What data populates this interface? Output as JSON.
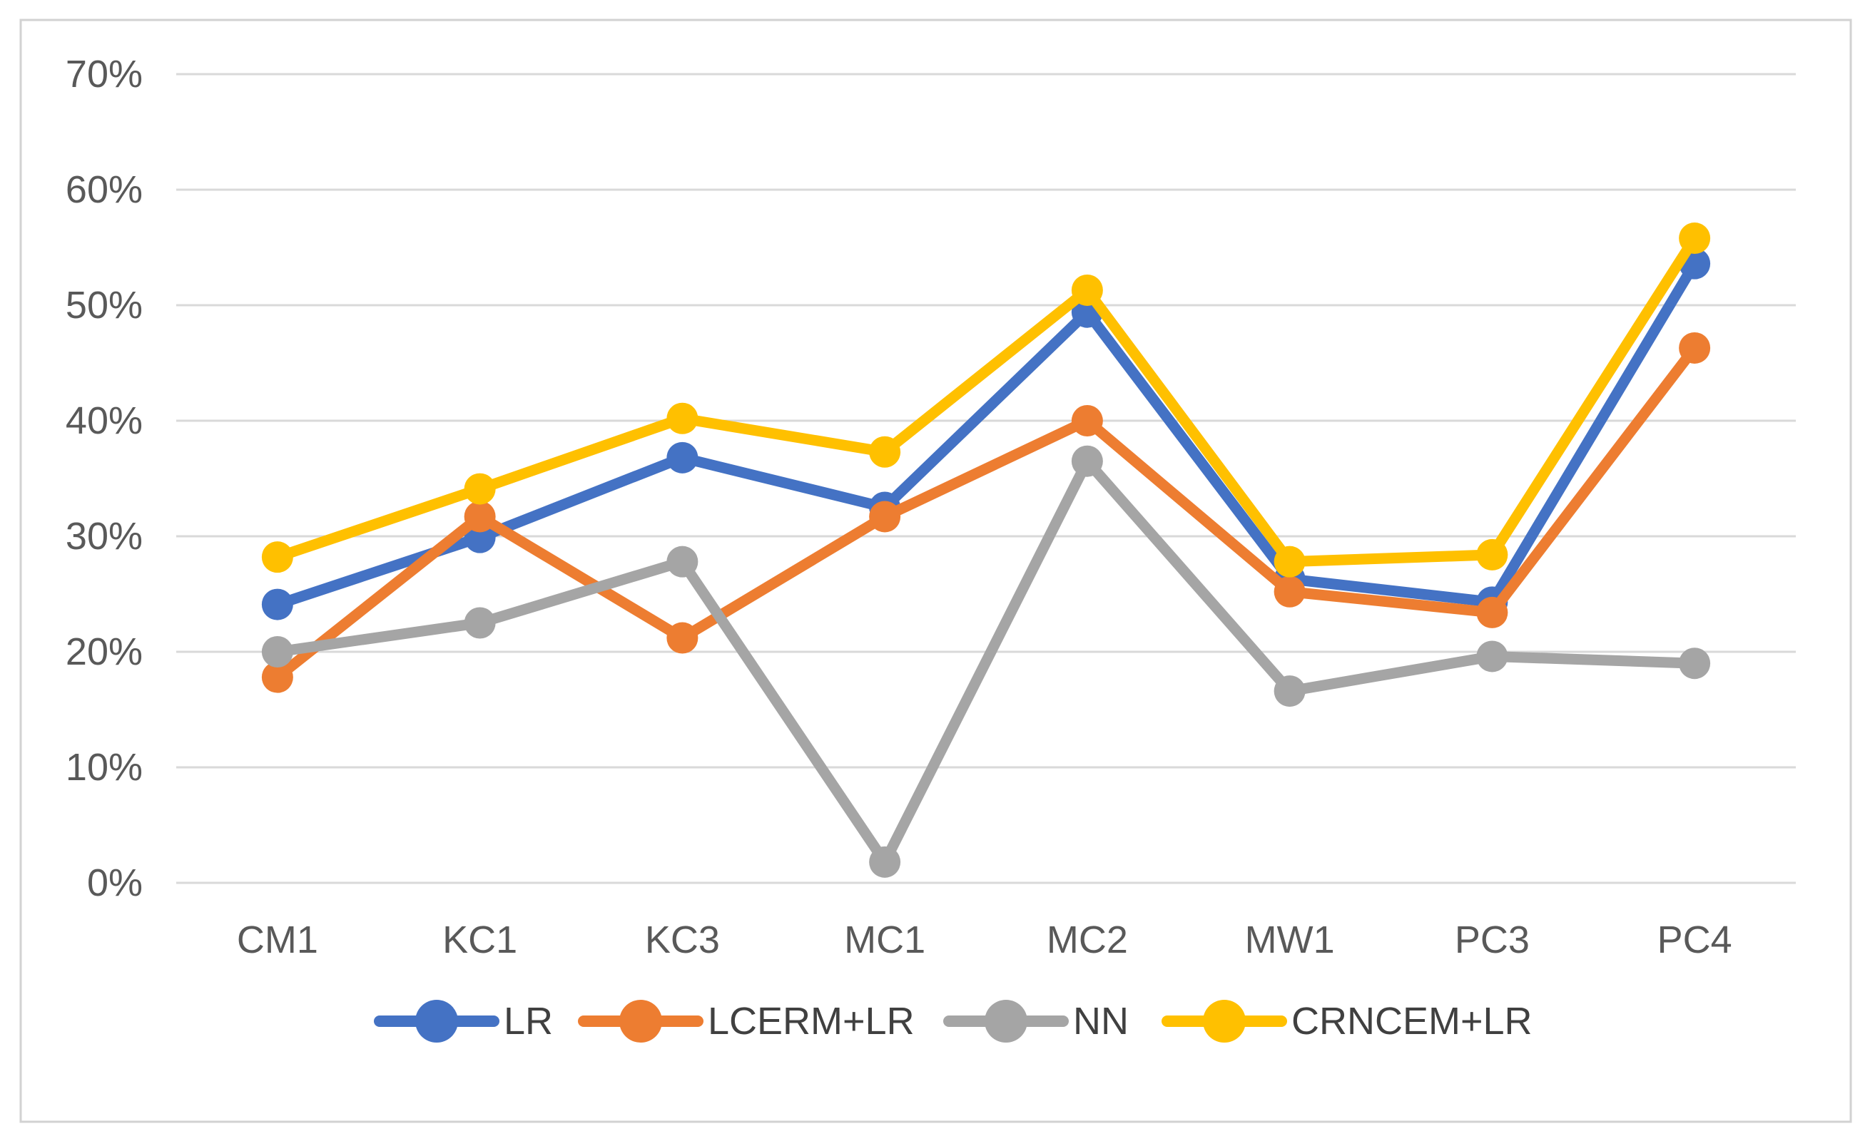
{
  "chart_data": {
    "type": "line",
    "title": "",
    "xlabel": "",
    "ylabel": "",
    "categories": [
      "CM1",
      "KC1",
      "KC3",
      "MC1",
      "MC2",
      "MW1",
      "PC3",
      "PC4"
    ],
    "series": [
      {
        "name": "LR",
        "color": "#4472C4",
        "values": [
          24.1,
          29.9,
          36.8,
          32.5,
          49.4,
          26.3,
          24.3,
          53.6
        ]
      },
      {
        "name": "LCERM+LR",
        "color": "#ED7D31",
        "values": [
          17.8,
          31.7,
          21.2,
          31.7,
          40.0,
          25.2,
          23.4,
          46.3
        ]
      },
      {
        "name": "NN",
        "color": "#A5A5A5",
        "values": [
          20.0,
          22.5,
          27.8,
          1.8,
          36.5,
          16.6,
          19.6,
          19.0
        ]
      },
      {
        "name": "CRNCEM+LR",
        "color": "#FFC000",
        "values": [
          28.2,
          34.1,
          40.2,
          37.3,
          51.3,
          27.8,
          28.4,
          55.8
        ]
      }
    ],
    "ylim": [
      0,
      70
    ],
    "ytick_step": 10,
    "ytick_labels": [
      "0%",
      "10%",
      "20%",
      "30%",
      "40%",
      "50%",
      "60%",
      "70%"
    ],
    "grid": true,
    "marker": "circle",
    "legend_position": "bottom",
    "legend_entries": [
      "LR",
      "LCERM+LR",
      "NN",
      "CRNCEM+LR"
    ]
  },
  "colors": {
    "background": "#FFFFFF",
    "gridline": "#D9D9D9",
    "chart_border": "#D2D2D2",
    "tick_label": "#595959",
    "legend_label": "#404040"
  }
}
